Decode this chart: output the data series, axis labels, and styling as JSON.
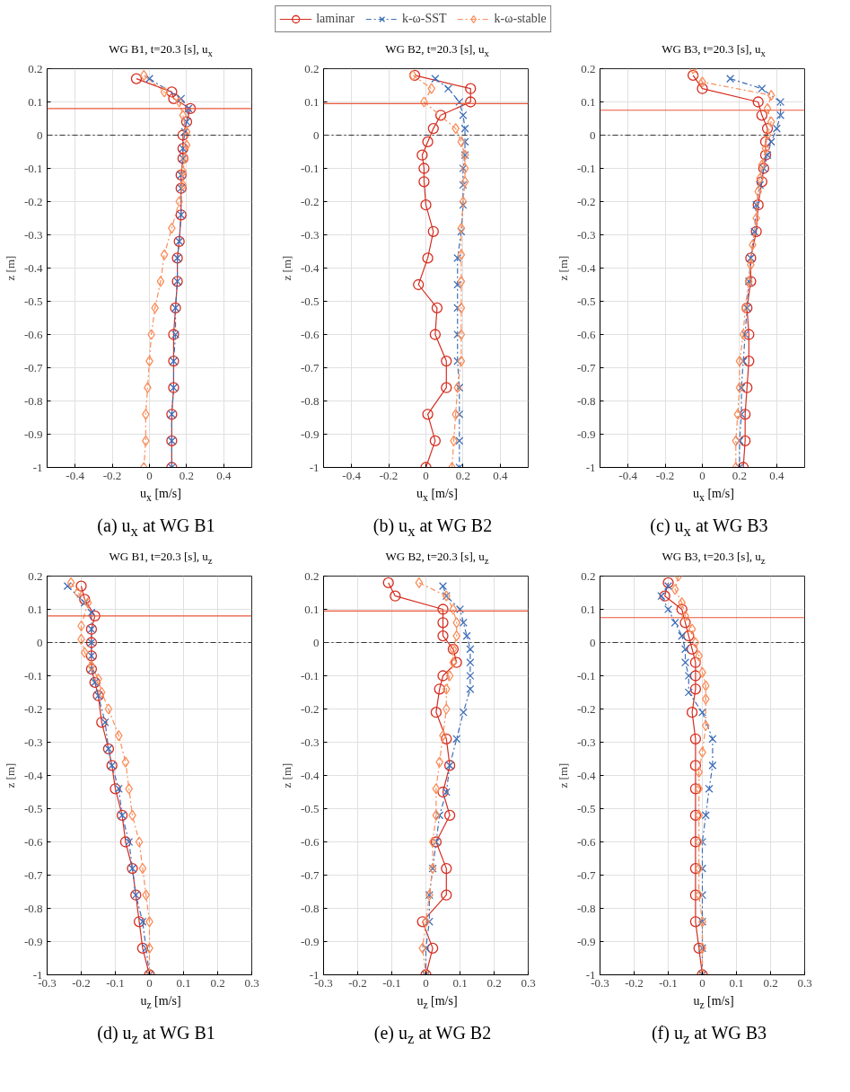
{
  "chart_data": [
    {
      "type": "line",
      "title": "WG B1, t=20.3 [s], u$_{x}$",
      "xlabel": "u$_{x}$ [m/s]",
      "ylabel": "z [m]",
      "annotations": [
        "(a) u$_{x}$ at WG B1"
      ],
      "xlim": [
        -0.55,
        0.55
      ],
      "xticks": [
        -0.4,
        -0.2,
        0,
        0.2,
        0.4
      ],
      "ylim": [
        -1,
        0.2
      ],
      "yticks": [
        -1,
        -0.9,
        -0.8,
        -0.7,
        -0.6,
        -0.5,
        -0.4,
        -0.3,
        -0.2,
        -0.1,
        0,
        0.1,
        0.2
      ],
      "grid": true,
      "legend": "top",
      "ref_lines": [
        {
          "axis": "y",
          "value": 0.08,
          "color": "#e8573a",
          "line_style": "solid"
        },
        {
          "axis": "y",
          "value": 0,
          "color": "#333333",
          "line_style": "dashed"
        }
      ],
      "series": [
        {
          "name": "laminar",
          "color": "#d62d20",
          "marker": "circle",
          "line_style": "solid",
          "x": [
            -0.07,
            0.12,
            0.13,
            0.22,
            0.2,
            0.18,
            0.18,
            0.18,
            0.17,
            0.17,
            0.17,
            0.16,
            0.15,
            0.15,
            0.14,
            0.13,
            0.13,
            0.13,
            0.12,
            0.12,
            0.12
          ],
          "values": [
            0.17,
            0.13,
            0.11,
            0.08,
            0.04,
            0,
            -0.04,
            -0.07,
            -0.12,
            -0.16,
            -0.24,
            -0.32,
            -0.37,
            -0.44,
            -0.52,
            -0.6,
            -0.68,
            -0.76,
            -0.84,
            -0.92,
            -1
          ]
        },
        {
          "name": "k-ω-SST",
          "color": "#3f6fb8",
          "marker": "cross",
          "line_style": "dashed",
          "x": [
            0,
            0.17,
            0.21,
            0.2,
            0.19,
            0.18,
            0.18,
            0.17,
            0.17,
            0.17,
            0.16,
            0.15,
            0.15,
            0.14,
            0.14,
            0.13,
            0.13,
            0.12,
            0.12,
            0.12
          ],
          "values": [
            0.17,
            0.11,
            0.08,
            0.04,
            0.01,
            -0.04,
            -0.07,
            -0.12,
            -0.16,
            -0.24,
            -0.32,
            -0.37,
            -0.44,
            -0.52,
            -0.6,
            -0.68,
            -0.76,
            -0.84,
            -0.92,
            -1
          ]
        },
        {
          "name": "k-ω-stable",
          "color": "#f98e5b",
          "marker": "diamond",
          "line_style": "dashed",
          "x": [
            -0.03,
            0.08,
            0.16,
            0.18,
            0.2,
            0.2,
            0.19,
            0.18,
            0.18,
            0.16,
            0.12,
            0.08,
            0.06,
            0.03,
            0.01,
            0,
            -0.01,
            -0.02,
            -0.02,
            -0.03
          ],
          "values": [
            0.18,
            0.13,
            0.1,
            0.06,
            0.01,
            -0.03,
            -0.07,
            -0.11,
            -0.15,
            -0.2,
            -0.28,
            -0.36,
            -0.44,
            -0.52,
            -0.6,
            -0.68,
            -0.76,
            -0.84,
            -0.92,
            -1
          ]
        }
      ]
    },
    {
      "type": "line",
      "title": "WG B2, t=20.3 [s], u$_{x}$",
      "xlabel": "u$_{x}$ [m/s]",
      "ylabel": "z [m]",
      "annotations": [
        "(b) u$_{x}$ at WG B2"
      ],
      "xlim": [
        -0.55,
        0.55
      ],
      "xticks": [
        -0.4,
        -0.2,
        0,
        0.2,
        0.4
      ],
      "ylim": [
        -1,
        0.2
      ],
      "yticks": [
        -1,
        -0.9,
        -0.8,
        -0.7,
        -0.6,
        -0.5,
        -0.4,
        -0.3,
        -0.2,
        -0.1,
        0,
        0.1,
        0.2
      ],
      "grid": true,
      "ref_lines": [
        {
          "axis": "y",
          "value": 0.095,
          "color": "#e8573a",
          "line_style": "solid"
        },
        {
          "axis": "y",
          "value": 0,
          "color": "#333333",
          "line_style": "dashed"
        }
      ],
      "series": [
        {
          "color": "#d62d20",
          "marker": "circle",
          "line_style": "solid",
          "x": [
            -0.06,
            0.24,
            0.24,
            0.08,
            0.04,
            0.01,
            -0.02,
            -0.01,
            -0.01,
            0,
            0.04,
            0.01,
            -0.04,
            0.06,
            0.05,
            0.11,
            0.11,
            0.01,
            0.05,
            0
          ],
          "values": [
            0.18,
            0.14,
            0.1,
            0.06,
            0.02,
            -0.02,
            -0.06,
            -0.1,
            -0.14,
            -0.21,
            -0.29,
            -0.37,
            -0.45,
            -0.52,
            -0.6,
            -0.68,
            -0.76,
            -0.84,
            -0.92,
            -1
          ]
        },
        {
          "color": "#3f6fb8",
          "marker": "cross",
          "line_style": "dashed",
          "x": [
            0.05,
            0.12,
            0.18,
            0.2,
            0.21,
            0.21,
            0.21,
            0.2,
            0.2,
            0.2,
            0.19,
            0.17,
            0.17,
            0.17,
            0.17,
            0.17,
            0.18,
            0.18,
            0.18,
            0.18
          ],
          "values": [
            0.17,
            0.14,
            0.1,
            0.06,
            0.02,
            -0.02,
            -0.06,
            -0.1,
            -0.15,
            -0.21,
            -0.29,
            -0.37,
            -0.45,
            -0.52,
            -0.6,
            -0.68,
            -0.76,
            -0.84,
            -0.92,
            -1
          ]
        },
        {
          "color": "#f98e5b",
          "marker": "diamond",
          "line_style": "dashed",
          "x": [
            -0.07,
            0.03,
            -0.01,
            0.16,
            0.19,
            0.21,
            0.21,
            0.21,
            0.2,
            0.19,
            0.19,
            0.19,
            0.19,
            0.19,
            0.19,
            0.17,
            0.16,
            0.15,
            0.14
          ],
          "values": [
            0.18,
            0.14,
            0.1,
            0.02,
            -0.02,
            -0.06,
            -0.1,
            -0.14,
            -0.2,
            -0.28,
            -0.36,
            -0.44,
            -0.52,
            -0.6,
            -0.68,
            -0.76,
            -0.84,
            -0.92,
            -1
          ]
        }
      ]
    },
    {
      "type": "line",
      "title": "WG B3, t=20.3 [s], u$_{x}$",
      "xlabel": "u$_{x}$ [m/s]",
      "ylabel": "z [m]",
      "annotations": [
        "(c) u$_{x}$ at WG B3"
      ],
      "xlim": [
        -0.55,
        0.55
      ],
      "xticks": [
        -0.4,
        -0.2,
        0,
        0.2,
        0.4
      ],
      "ylim": [
        -1,
        0.2
      ],
      "yticks": [
        -1,
        -0.9,
        -0.8,
        -0.7,
        -0.6,
        -0.5,
        -0.4,
        -0.3,
        -0.2,
        -0.1,
        0,
        0.1,
        0.2
      ],
      "grid": true,
      "ref_lines": [
        {
          "axis": "y",
          "value": 0.075,
          "color": "#e8573a",
          "line_style": "solid"
        },
        {
          "axis": "y",
          "value": 0,
          "color": "#333333",
          "line_style": "dashed"
        }
      ],
      "series": [
        {
          "color": "#d62d20",
          "marker": "circle",
          "line_style": "solid",
          "x": [
            -0.05,
            0,
            0.3,
            0.32,
            0.35,
            0.34,
            0.34,
            0.33,
            0.32,
            0.3,
            0.29,
            0.26,
            0.26,
            0.24,
            0.25,
            0.25,
            0.24,
            0.23,
            0.23,
            0.22
          ],
          "values": [
            0.18,
            0.14,
            0.1,
            0.06,
            0.02,
            -0.02,
            -0.06,
            -0.1,
            -0.14,
            -0.21,
            -0.29,
            -0.37,
            -0.44,
            -0.52,
            -0.6,
            -0.68,
            -0.76,
            -0.84,
            -0.92,
            -1
          ]
        },
        {
          "color": "#3f6fb8",
          "marker": "cross",
          "line_style": "dashed",
          "x": [
            0.15,
            0.32,
            0.42,
            0.42,
            0.4,
            0.37,
            0.35,
            0.33,
            0.31,
            0.29,
            0.28,
            0.26,
            0.25,
            0.24,
            0.23,
            0.22,
            0.21,
            0.21,
            0.2,
            0.2
          ],
          "values": [
            0.17,
            0.14,
            0.1,
            0.06,
            0.02,
            -0.02,
            -0.06,
            -0.1,
            -0.15,
            -0.21,
            -0.29,
            -0.37,
            -0.44,
            -0.52,
            -0.6,
            -0.68,
            -0.76,
            -0.84,
            -0.92,
            -1
          ]
        },
        {
          "color": "#f98e5b",
          "marker": "diamond",
          "line_style": "dashed",
          "x": [
            -0.05,
            0,
            0.37,
            0.35,
            0.37,
            0.35,
            0.34,
            0.32,
            0.31,
            0.3,
            0.29,
            0.27,
            0.26,
            0.25,
            0.23,
            0.22,
            0.2,
            0.2,
            0.19,
            0.18,
            0.18
          ],
          "values": [
            0.2,
            0.16,
            0.12,
            0.08,
            0.04,
            0,
            -0.04,
            -0.09,
            -0.13,
            -0.17,
            -0.25,
            -0.33,
            -0.39,
            -0.44,
            -0.52,
            -0.6,
            -0.68,
            -0.76,
            -0.84,
            -0.92,
            -1
          ]
        }
      ]
    },
    {
      "type": "line",
      "title": "WG B1, t=20.3 [s], u$_{z}$",
      "xlabel": "u$_{z}$ [m/s]",
      "ylabel": "z [m]",
      "annotations": [
        "(d) u$_{z}$ at WG B1"
      ],
      "xlim": [
        -0.3,
        0.3
      ],
      "xticks": [
        -0.3,
        -0.2,
        -0.1,
        0,
        0.1,
        0.2,
        0.3
      ],
      "ylim": [
        -1,
        0.2
      ],
      "yticks": [
        -1,
        -0.9,
        -0.8,
        -0.7,
        -0.6,
        -0.5,
        -0.4,
        -0.3,
        -0.2,
        -0.1,
        0,
        0.1,
        0.2
      ],
      "grid": true,
      "ref_lines": [
        {
          "axis": "y",
          "value": 0.08,
          "color": "#e8573a",
          "line_style": "solid"
        },
        {
          "axis": "y",
          "value": 0,
          "color": "#333333",
          "line_style": "dashed"
        }
      ],
      "series": [
        {
          "color": "#d62d20",
          "marker": "circle",
          "line_style": "solid",
          "x": [
            -0.2,
            -0.19,
            -0.16,
            -0.17,
            -0.17,
            -0.17,
            -0.17,
            -0.16,
            -0.15,
            -0.14,
            -0.12,
            -0.11,
            -0.1,
            -0.08,
            -0.07,
            -0.05,
            -0.04,
            -0.03,
            -0.02,
            0
          ],
          "values": [
            0.17,
            0.13,
            0.08,
            0.04,
            0,
            -0.04,
            -0.08,
            -0.12,
            -0.16,
            -0.24,
            -0.32,
            -0.37,
            -0.44,
            -0.52,
            -0.6,
            -0.68,
            -0.76,
            -0.84,
            -0.92,
            -1
          ]
        },
        {
          "color": "#3f6fb8",
          "marker": "cross",
          "line_style": "dashed",
          "x": [
            -0.24,
            -0.19,
            -0.17,
            -0.17,
            -0.17,
            -0.17,
            -0.17,
            -0.16,
            -0.15,
            -0.13,
            -0.12,
            -0.11,
            -0.09,
            -0.08,
            -0.06,
            -0.05,
            -0.04,
            -0.02,
            -0.01,
            0
          ],
          "values": [
            0.17,
            0.12,
            0.09,
            0.04,
            0,
            -0.04,
            -0.08,
            -0.12,
            -0.16,
            -0.24,
            -0.32,
            -0.37,
            -0.44,
            -0.52,
            -0.6,
            -0.68,
            -0.76,
            -0.84,
            -0.92,
            -1
          ]
        },
        {
          "color": "#f98e5b",
          "marker": "diamond",
          "line_style": "dashed",
          "x": [
            -0.23,
            -0.21,
            -0.18,
            -0.2,
            -0.2,
            -0.19,
            -0.17,
            -0.15,
            -0.14,
            -0.12,
            -0.09,
            -0.07,
            -0.06,
            -0.05,
            -0.03,
            -0.02,
            -0.01,
            0,
            0,
            0
          ],
          "values": [
            0.18,
            0.15,
            0.12,
            0.05,
            0.01,
            -0.03,
            -0.07,
            -0.11,
            -0.15,
            -0.2,
            -0.28,
            -0.36,
            -0.44,
            -0.52,
            -0.6,
            -0.68,
            -0.76,
            -0.84,
            -0.92,
            -1
          ]
        }
      ]
    },
    {
      "type": "line",
      "title": "WG B2, t=20.3 [s], u$_{z}$",
      "xlabel": "u$_{z}$ [m/s]",
      "ylabel": "z [m]",
      "annotations": [
        "(e) u$_{z}$ at WG B2"
      ],
      "xlim": [
        -0.3,
        0.3
      ],
      "xticks": [
        -0.3,
        -0.2,
        -0.1,
        0,
        0.1,
        0.2,
        0.3
      ],
      "ylim": [
        -1,
        0.2
      ],
      "yticks": [
        -1,
        -0.9,
        -0.8,
        -0.7,
        -0.6,
        -0.5,
        -0.4,
        -0.3,
        -0.2,
        -0.1,
        0,
        0.1,
        0.2
      ],
      "grid": true,
      "ref_lines": [
        {
          "axis": "y",
          "value": 0.095,
          "color": "#e8573a",
          "line_style": "solid"
        },
        {
          "axis": "y",
          "value": 0,
          "color": "#333333",
          "line_style": "dashed"
        }
      ],
      "series": [
        {
          "color": "#d62d20",
          "marker": "circle",
          "line_style": "solid",
          "x": [
            -0.11,
            -0.09,
            0.05,
            0.05,
            0.05,
            0.08,
            0.09,
            0.05,
            0.04,
            0.03,
            0.06,
            0.07,
            0.05,
            0.07,
            0.03,
            0.06,
            0.06,
            -0.01,
            0.02,
            0
          ],
          "values": [
            0.18,
            0.14,
            0.1,
            0.06,
            0.02,
            -0.02,
            -0.06,
            -0.1,
            -0.14,
            -0.21,
            -0.29,
            -0.37,
            -0.45,
            -0.52,
            -0.6,
            -0.68,
            -0.76,
            -0.84,
            -0.92,
            -1
          ]
        },
        {
          "color": "#3f6fb8",
          "marker": "cross",
          "line_style": "dashed",
          "x": [
            0.05,
            0.06,
            0.1,
            0.11,
            0.12,
            0.13,
            0.13,
            0.13,
            0.13,
            0.11,
            0.09,
            0.07,
            0.06,
            0.04,
            0.03,
            0.02,
            0.01,
            0.01,
            0,
            0
          ],
          "values": [
            0.17,
            0.14,
            0.1,
            0.06,
            0.02,
            -0.02,
            -0.06,
            -0.1,
            -0.14,
            -0.21,
            -0.29,
            -0.37,
            -0.45,
            -0.52,
            -0.6,
            -0.68,
            -0.76,
            -0.84,
            -0.92,
            -1
          ]
        },
        {
          "color": "#f98e5b",
          "marker": "diamond",
          "line_style": "dashed",
          "x": [
            -0.02,
            0.06,
            0.08,
            0.09,
            0.09,
            0.08,
            0.08,
            0.07,
            0.06,
            0.06,
            0.05,
            0.04,
            0.03,
            0.03,
            0.02,
            0.02,
            0.01,
            0,
            -0.01,
            0
          ],
          "values": [
            0.18,
            0.14,
            0.1,
            0.06,
            0.02,
            -0.02,
            -0.06,
            -0.1,
            -0.14,
            -0.2,
            -0.28,
            -0.36,
            -0.44,
            -0.52,
            -0.6,
            -0.68,
            -0.76,
            -0.84,
            -0.92,
            -1
          ]
        }
      ]
    },
    {
      "type": "line",
      "title": "WG B3, t=20.3 [s], u$_{z}$",
      "xlabel": "u$_{z}$ [m/s]",
      "ylabel": "z [m]",
      "annotations": [
        "(f) u$_{z}$ at WG B3"
      ],
      "xlim": [
        -0.3,
        0.3
      ],
      "xticks": [
        -0.3,
        -0.2,
        -0.1,
        0,
        0.1,
        0.2,
        0.3
      ],
      "ylim": [
        -1,
        0.2
      ],
      "yticks": [
        -1,
        -0.9,
        -0.8,
        -0.7,
        -0.6,
        -0.5,
        -0.4,
        -0.3,
        -0.2,
        -0.1,
        0,
        0.1,
        0.2
      ],
      "grid": true,
      "ref_lines": [
        {
          "axis": "y",
          "value": 0.075,
          "color": "#e8573a",
          "line_style": "solid"
        },
        {
          "axis": "y",
          "value": 0,
          "color": "#333333",
          "line_style": "dashed"
        }
      ],
      "series": [
        {
          "color": "#d62d20",
          "marker": "circle",
          "line_style": "solid",
          "x": [
            -0.1,
            -0.11,
            -0.06,
            -0.05,
            -0.04,
            -0.03,
            -0.02,
            -0.02,
            -0.02,
            -0.03,
            -0.02,
            -0.02,
            -0.02,
            -0.02,
            -0.02,
            -0.02,
            -0.02,
            -0.02,
            -0.01,
            0
          ],
          "values": [
            0.18,
            0.14,
            0.1,
            0.06,
            0.02,
            -0.02,
            -0.06,
            -0.1,
            -0.14,
            -0.21,
            -0.29,
            -0.37,
            -0.44,
            -0.52,
            -0.6,
            -0.68,
            -0.76,
            -0.84,
            -0.92,
            -1
          ]
        },
        {
          "color": "#3f6fb8",
          "marker": "cross",
          "line_style": "dashed",
          "x": [
            -0.1,
            -0.12,
            -0.1,
            -0.08,
            -0.06,
            -0.05,
            -0.05,
            -0.04,
            -0.04,
            0,
            0.03,
            0.03,
            0.02,
            0.01,
            0,
            0,
            0,
            0,
            0,
            0
          ],
          "values": [
            0.17,
            0.14,
            0.1,
            0.06,
            0.02,
            -0.02,
            -0.06,
            -0.1,
            -0.15,
            -0.21,
            -0.29,
            -0.37,
            -0.44,
            -0.52,
            -0.6,
            -0.68,
            -0.76,
            -0.84,
            -0.92,
            -1
          ]
        },
        {
          "color": "#f98e5b",
          "marker": "diamond",
          "line_style": "dashed",
          "x": [
            -0.07,
            -0.08,
            -0.06,
            -0.05,
            -0.03,
            -0.02,
            -0.01,
            0,
            0.01,
            0.01,
            0.01,
            0,
            -0.01,
            -0.01,
            -0.01,
            -0.01,
            -0.01,
            -0.01,
            0,
            0,
            0
          ],
          "values": [
            0.2,
            0.16,
            0.12,
            0.08,
            0.04,
            0,
            -0.04,
            -0.09,
            -0.13,
            -0.17,
            -0.25,
            -0.33,
            -0.39,
            -0.44,
            -0.52,
            -0.6,
            -0.68,
            -0.76,
            -0.84,
            -0.92,
            -1
          ]
        }
      ]
    }
  ]
}
